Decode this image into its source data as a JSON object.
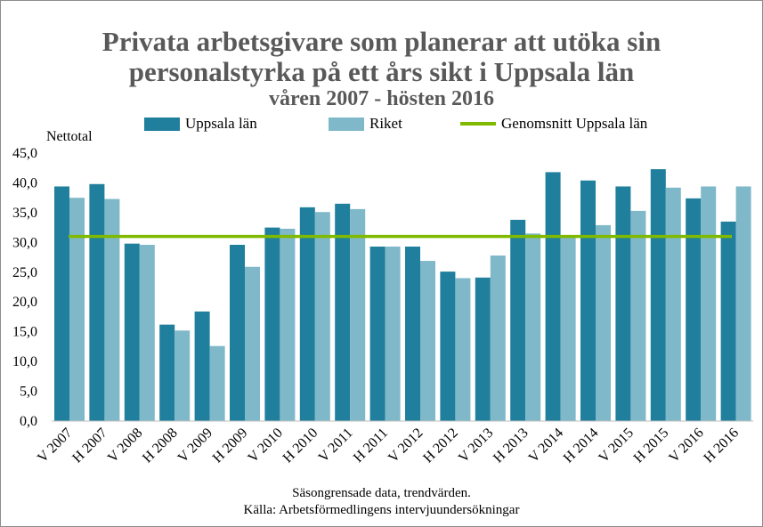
{
  "chart_data": {
    "type": "bar",
    "title": "Privata arbetsgivare som planerar att utöka sin personalstyrka på ett års sikt i Uppsala län",
    "title_line1": "Privata arbetsgivare som planerar att utöka sin",
    "title_line2": "personalstyrka på ett års sikt i Uppsala län",
    "subtitle": "våren 2007 - hösten 2016",
    "ylabel": "Nettotal",
    "ylim": [
      0,
      45
    ],
    "yticks": [
      "0,0",
      "5,0",
      "10,0",
      "15,0",
      "20,0",
      "25,0",
      "30,0",
      "35,0",
      "40,0",
      "45,0"
    ],
    "grid": false,
    "legend_position": "top",
    "categories": [
      "V 2007",
      "H 2007",
      "V 2008",
      "H 2008",
      "V 2009",
      "H 2009",
      "V 2010",
      "H 2010",
      "V 2011",
      "H 2011",
      "V 2012",
      "H 2012",
      "V 2013",
      "H 2013",
      "V 2014",
      "H 2014",
      "V 2015",
      "H 2015",
      "V 2016",
      "H 2016"
    ],
    "series": [
      {
        "name": "Uppsala län",
        "color": "#1f7f9c",
        "values": [
          39.4,
          39.8,
          29.8,
          16.2,
          18.4,
          29.6,
          32.5,
          35.9,
          36.5,
          29.3,
          29.3,
          25.1,
          24.1,
          33.8,
          41.8,
          40.4,
          39.4,
          42.3,
          37.4,
          33.5
        ]
      },
      {
        "name": "Riket",
        "color": "#7fb8c9",
        "values": [
          37.5,
          37.3,
          29.6,
          15.2,
          12.6,
          25.9,
          32.3,
          35.1,
          35.6,
          29.3,
          26.9,
          24.0,
          27.8,
          31.5,
          31.0,
          32.9,
          35.3,
          39.2,
          39.4,
          39.4
        ]
      }
    ],
    "reference_line": {
      "name": "Genomsnitt Uppsala län",
      "color": "#7fba00",
      "value": 31.0
    }
  },
  "footnote_line1": "Säsongrensade data, trendvärden.",
  "footnote_line2": "Källa: Arbetsförmedlingens intervjuundersökningar"
}
